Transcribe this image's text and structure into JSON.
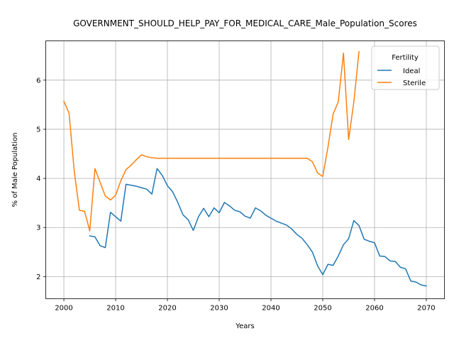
{
  "chart_data": {
    "type": "line",
    "title": "GOVERNMENT_SHOULD_HELP_PAY_FOR_MEDICAL_CARE_Male_Population_Scores",
    "xlabel": "Years",
    "ylabel": "% of Male Population",
    "xlim": [
      1996.5,
      2073.5
    ],
    "ylim": [
      1.55,
      6.8
    ],
    "xticks": [
      2000,
      2010,
      2020,
      2030,
      2040,
      2050,
      2060,
      2070
    ],
    "yticks": [
      2,
      3,
      4,
      5,
      6
    ],
    "grid": true,
    "legend": {
      "title": "Fertility",
      "placement": "top-right"
    },
    "series": [
      {
        "name": "Ideal",
        "color": "#1f77b4",
        "points": [
          [
            2005,
            2.83
          ],
          [
            2006,
            2.81
          ],
          [
            2007,
            2.63
          ],
          [
            2008,
            2.59
          ],
          [
            2009,
            3.31
          ],
          [
            2010,
            3.22
          ],
          [
            2011,
            3.13
          ],
          [
            2012,
            3.88
          ],
          [
            2013,
            3.86
          ],
          [
            2014,
            3.84
          ],
          [
            2015,
            3.81
          ],
          [
            2016,
            3.78
          ],
          [
            2017,
            3.68
          ],
          [
            2018,
            4.2
          ],
          [
            2019,
            4.06
          ],
          [
            2020,
            3.85
          ],
          [
            2021,
            3.73
          ],
          [
            2022,
            3.51
          ],
          [
            2023,
            3.26
          ],
          [
            2024,
            3.16
          ],
          [
            2025,
            2.94
          ],
          [
            2026,
            3.22
          ],
          [
            2027,
            3.39
          ],
          [
            2028,
            3.22
          ],
          [
            2029,
            3.4
          ],
          [
            2030,
            3.3
          ],
          [
            2031,
            3.51
          ],
          [
            2032,
            3.44
          ],
          [
            2033,
            3.35
          ],
          [
            2034,
            3.32
          ],
          [
            2035,
            3.23
          ],
          [
            2036,
            3.19
          ],
          [
            2037,
            3.4
          ],
          [
            2038,
            3.34
          ],
          [
            2039,
            3.25
          ],
          [
            2040,
            3.19
          ],
          [
            2041,
            3.13
          ],
          [
            2042,
            3.09
          ],
          [
            2043,
            3.05
          ],
          [
            2044,
            2.97
          ],
          [
            2045,
            2.86
          ],
          [
            2046,
            2.78
          ],
          [
            2047,
            2.65
          ],
          [
            2048,
            2.5
          ],
          [
            2049,
            2.22
          ],
          [
            2050,
            2.04
          ],
          [
            2051,
            2.25
          ],
          [
            2052,
            2.23
          ],
          [
            2053,
            2.42
          ],
          [
            2054,
            2.65
          ],
          [
            2055,
            2.77
          ],
          [
            2056,
            3.14
          ],
          [
            2057,
            3.04
          ],
          [
            2058,
            2.76
          ],
          [
            2059,
            2.72
          ],
          [
            2060,
            2.69
          ],
          [
            2061,
            2.42
          ],
          [
            2062,
            2.41
          ],
          [
            2063,
            2.32
          ],
          [
            2064,
            2.31
          ],
          [
            2065,
            2.19
          ],
          [
            2066,
            2.16
          ],
          [
            2067,
            1.91
          ],
          [
            2068,
            1.89
          ],
          [
            2069,
            1.83
          ],
          [
            2070,
            1.81
          ]
        ]
      },
      {
        "name": "Sterile",
        "color": "#ff7f0e",
        "points": [
          [
            2000,
            5.57
          ],
          [
            2001,
            5.33
          ],
          [
            2002,
            4.15
          ],
          [
            2003,
            3.35
          ],
          [
            2004,
            3.33
          ],
          [
            2005,
            2.93
          ],
          [
            2006,
            4.2
          ],
          [
            2007,
            3.92
          ],
          [
            2008,
            3.64
          ],
          [
            2009,
            3.56
          ],
          [
            2010,
            3.66
          ],
          [
            2011,
            3.95
          ],
          [
            2012,
            4.18
          ],
          [
            2013,
            4.27
          ],
          [
            2014,
            4.38
          ],
          [
            2015,
            4.48
          ],
          [
            2016,
            4.44
          ],
          [
            2017,
            4.42
          ],
          [
            2018,
            4.41
          ],
          [
            2019,
            4.41
          ],
          [
            2020,
            4.41
          ],
          [
            2021,
            4.41
          ],
          [
            2022,
            4.41
          ],
          [
            2023,
            4.41
          ],
          [
            2024,
            4.41
          ],
          [
            2025,
            4.41
          ],
          [
            2026,
            4.41
          ],
          [
            2027,
            4.41
          ],
          [
            2028,
            4.41
          ],
          [
            2029,
            4.41
          ],
          [
            2030,
            4.41
          ],
          [
            2031,
            4.41
          ],
          [
            2032,
            4.41
          ],
          [
            2033,
            4.41
          ],
          [
            2034,
            4.41
          ],
          [
            2035,
            4.41
          ],
          [
            2036,
            4.41
          ],
          [
            2037,
            4.41
          ],
          [
            2038,
            4.41
          ],
          [
            2039,
            4.41
          ],
          [
            2040,
            4.41
          ],
          [
            2041,
            4.41
          ],
          [
            2042,
            4.41
          ],
          [
            2043,
            4.41
          ],
          [
            2044,
            4.41
          ],
          [
            2045,
            4.41
          ],
          [
            2046,
            4.41
          ],
          [
            2047,
            4.41
          ],
          [
            2048,
            4.34
          ],
          [
            2049,
            4.11
          ],
          [
            2050,
            4.04
          ],
          [
            2051,
            4.63
          ],
          [
            2052,
            5.31
          ],
          [
            2053,
            5.56
          ],
          [
            2054,
            6.55
          ],
          [
            2055,
            4.79
          ],
          [
            2056,
            5.55
          ],
          [
            2057,
            6.58
          ]
        ]
      }
    ]
  }
}
